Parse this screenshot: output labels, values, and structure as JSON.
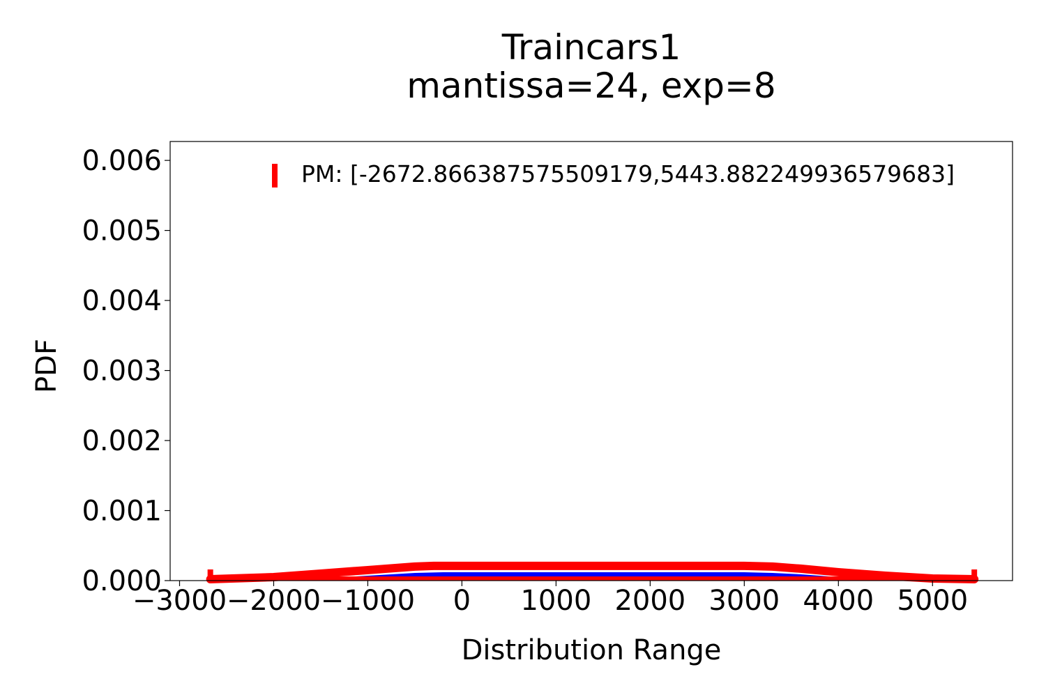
{
  "chart_data": {
    "type": "area",
    "title": "Traincars1",
    "subtitle": "mantissa=24, exp=8",
    "xlabel": "Distribution Range",
    "ylabel": "PDF",
    "xlim": [
      -3100,
      5850
    ],
    "ylim": [
      0,
      0.00627
    ],
    "grid": false,
    "legend_placement": "top-right",
    "x_ticks": [
      {
        "value": -3000,
        "label": "−3000"
      },
      {
        "value": -2000,
        "label": "−2000"
      },
      {
        "value": -1000,
        "label": "−1000"
      },
      {
        "value": 0,
        "label": "0"
      },
      {
        "value": 1000,
        "label": "1000"
      },
      {
        "value": 2000,
        "label": "2000"
      },
      {
        "value": 3000,
        "label": "3000"
      },
      {
        "value": 4000,
        "label": "4000"
      },
      {
        "value": 5000,
        "label": "5000"
      }
    ],
    "y_ticks": [
      {
        "value": 0.0,
        "label": "0.000"
      },
      {
        "value": 0.001,
        "label": "0.001"
      },
      {
        "value": 0.002,
        "label": "0.002"
      },
      {
        "value": 0.003,
        "label": "0.003"
      },
      {
        "value": 0.004,
        "label": "0.004"
      },
      {
        "value": 0.005,
        "label": "0.005"
      },
      {
        "value": 0.006,
        "label": "0.006"
      }
    ],
    "series": [
      {
        "kind": "filled-area",
        "color": "#0000ff",
        "x": [
          -2672.87,
          -2000,
          -1500,
          -1000,
          -500,
          -200,
          0,
          500,
          1000,
          1500,
          2000,
          2500,
          3000,
          3300,
          3600,
          4000,
          4500,
          5000,
          5443.88
        ],
        "y": [
          0.0,
          1e-05,
          3e-05,
          7e-05,
          0.00011,
          0.00012,
          0.00012,
          0.00012,
          0.00012,
          0.00012,
          0.00012,
          0.00012,
          0.00012,
          0.00011,
          9e-05,
          5e-05,
          2e-05,
          1e-05,
          0.0
        ]
      },
      {
        "kind": "line",
        "color": "#ff0000",
        "x": [
          -2672.87,
          -2000,
          -1500,
          -1000,
          -500,
          -300,
          0,
          500,
          1000,
          1500,
          2000,
          2500,
          3000,
          3300,
          3600,
          4000,
          4500,
          5000,
          5443.88
        ],
        "y": [
          2e-05,
          5e-05,
          0.0001,
          0.00015,
          0.0002,
          0.00021,
          0.00021,
          0.00021,
          0.00021,
          0.00021,
          0.00021,
          0.00021,
          0.00021,
          0.0002,
          0.00017,
          0.00012,
          7e-05,
          3e-05,
          2e-05
        ]
      }
    ],
    "interval": {
      "name": "PM: [-2672.866387575509179,5443.882249936579683]",
      "color": "#ff0000",
      "low": -2672.866387575509,
      "high": 5443.88224993658
    }
  }
}
